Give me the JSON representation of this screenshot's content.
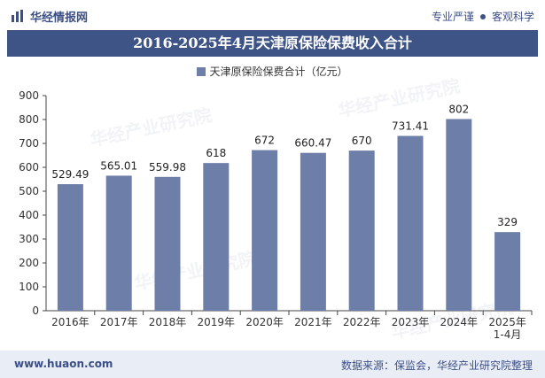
{
  "header": {
    "brand": "华经情报网",
    "tagline_left": "专业严谨",
    "tagline_right": "客观科学"
  },
  "watermark": "华经产业研究院",
  "chart_data": {
    "type": "bar",
    "title": "2016-2025年4月天津原保险保费收入合计",
    "legend": [
      "天津原保险保费合计（亿元）"
    ],
    "categories": [
      "2016年",
      "2017年",
      "2018年",
      "2019年",
      "2020年",
      "2021年",
      "2022年",
      "2023年",
      "2024年",
      "2025年\n1-4月"
    ],
    "series": [
      {
        "name": "天津原保险保费合计（亿元）",
        "values": [
          529.49,
          565.01,
          559.98,
          618,
          672,
          660.47,
          670,
          731.41,
          802,
          329
        ]
      }
    ],
    "value_labels": [
      "529.49",
      "565.01",
      "559.98",
      "618",
      "672",
      "660.47",
      "670",
      "731.41",
      "802",
      "329"
    ],
    "ylim": [
      0,
      900
    ],
    "yticks": [
      0,
      100,
      200,
      300,
      400,
      500,
      600,
      700,
      800,
      900
    ],
    "xlabel": "",
    "ylabel": "",
    "bar_color": "#6d7fa8",
    "grid": false,
    "legend_position": "top-center"
  },
  "footer": {
    "url": "www.huaon.com",
    "source": "数据来源：保监会，华经产业研究院整理"
  }
}
